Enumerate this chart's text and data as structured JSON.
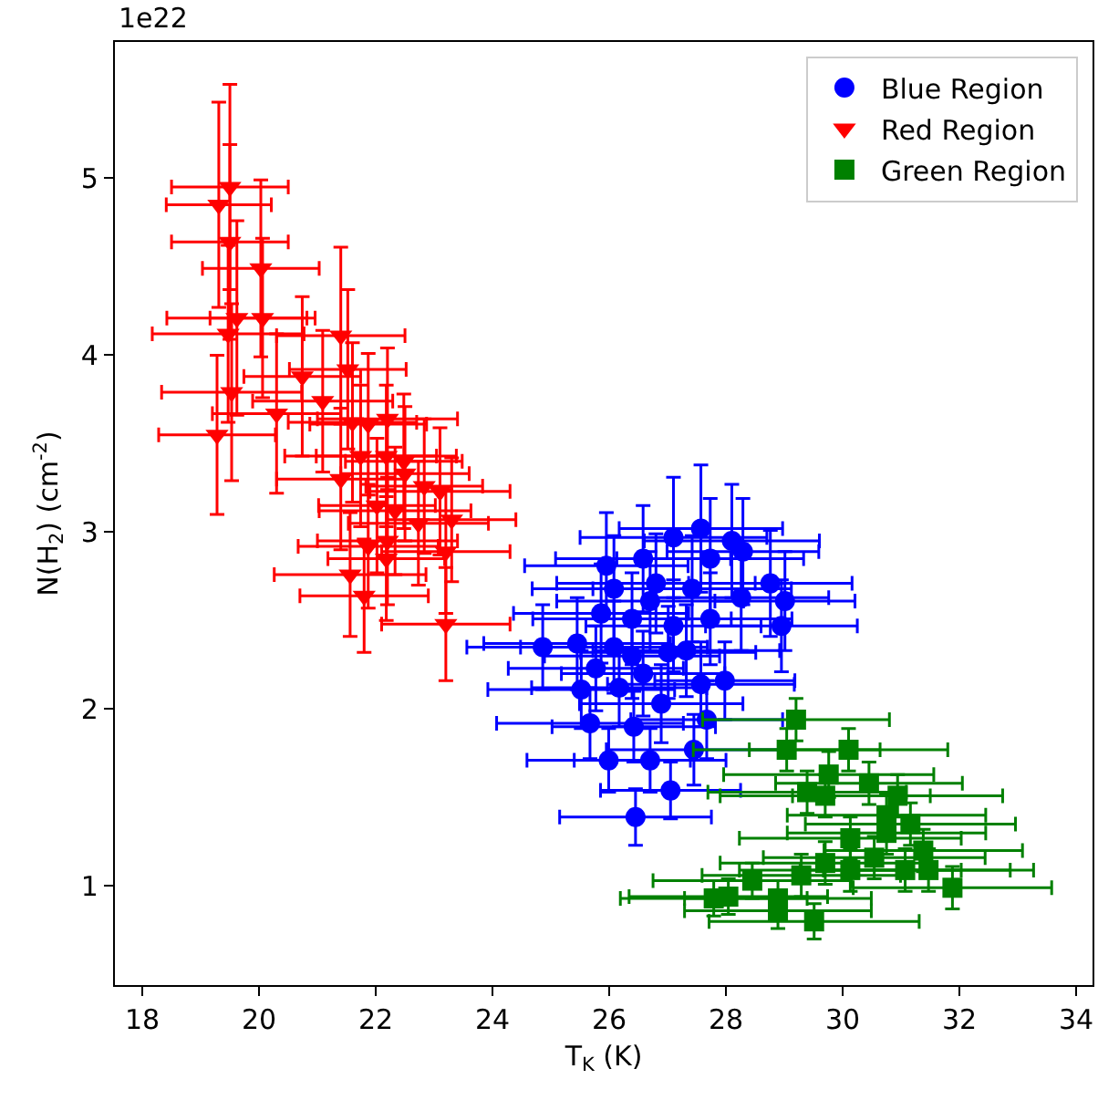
{
  "chart_data": {
    "type": "scatter",
    "xlabel": "T$_{K}$ (K)",
    "ylabel": "N(H$_{2}$) (cm$^{-2}$)",
    "annotations": [
      "1e22"
    ],
    "xlim": [
      17.53,
      34.28
    ],
    "xticks": [
      18,
      20,
      22,
      24,
      26,
      28,
      30,
      32,
      34
    ],
    "ylim": [
      0.44,
      5.77
    ],
    "yticks": [
      1,
      2,
      3,
      4,
      5
    ],
    "grid": false,
    "legend": "top right",
    "series": [
      {
        "name": "Blue Region",
        "color": "#0000ff",
        "marker": "circle",
        "x": [
          26.45,
          27.05,
          25.99,
          26.7,
          27.45,
          25.67,
          26.42,
          27.67,
          25.52,
          26.17,
          26.89,
          27.98,
          27.57,
          24.86,
          26.08,
          25.86,
          26.39,
          27.1,
          26.7,
          26.08,
          26.58,
          27.1,
          27.57,
          28.1,
          28.29,
          28.76,
          29.01,
          28.95,
          28.26,
          27.73,
          27.42,
          27.73,
          25.45,
          26.39,
          27.01,
          27.32,
          26.58,
          25.77,
          25.95,
          26.8
        ],
        "values": [
          1.39,
          1.54,
          1.71,
          1.71,
          1.77,
          1.92,
          1.9,
          1.94,
          2.11,
          2.12,
          2.03,
          2.16,
          2.14,
          2.35,
          2.35,
          2.54,
          2.51,
          2.47,
          2.61,
          2.68,
          2.85,
          2.97,
          3.02,
          2.95,
          2.89,
          2.71,
          2.61,
          2.47,
          2.63,
          2.85,
          2.68,
          2.51,
          2.37,
          2.3,
          2.32,
          2.33,
          2.2,
          2.23,
          2.81,
          2.71
        ],
        "xerrors": [
          1.3,
          1.2,
          1.4,
          1.3,
          1.5,
          1.6,
          1.4,
          1.3,
          1.6,
          1.5,
          1.4,
          1.2,
          1.6,
          1.3,
          1.6,
          1.5,
          1.7,
          1.5,
          1.6,
          1.4,
          1.5,
          1.6,
          1.4,
          1.5,
          1.3,
          1.4,
          1.2,
          1.3,
          1.5,
          1.6,
          1.7,
          1.4,
          1.6,
          1.5,
          1.5,
          1.6,
          1.4,
          1.5,
          1.4,
          1.7
        ],
        "errors": [
          0.16,
          0.16,
          0.18,
          0.18,
          0.2,
          0.2,
          0.2,
          0.22,
          0.22,
          0.22,
          0.22,
          0.22,
          0.24,
          0.24,
          0.26,
          0.28,
          0.26,
          0.26,
          0.28,
          0.3,
          0.3,
          0.34,
          0.36,
          0.32,
          0.3,
          0.3,
          0.28,
          0.26,
          0.3,
          0.34,
          0.3,
          0.26,
          0.26,
          0.24,
          0.26,
          0.26,
          0.24,
          0.24,
          0.3,
          0.28
        ]
      },
      {
        "name": "Red Region",
        "color": "#ff0000",
        "marker": "triangle",
        "x": [
          19.31,
          19.5,
          19.5,
          20.03,
          19.62,
          19.47,
          20.06,
          19.53,
          19.28,
          20.3,
          20.74,
          21.4,
          21.09,
          21.52,
          21.6,
          21.87,
          22.2,
          21.74,
          21.4,
          22.18,
          22.5,
          22.83,
          23.1,
          22.33,
          22.02,
          23.3,
          21.87,
          22.18,
          23.2,
          21.56,
          21.8,
          22.2,
          23.2,
          22.48,
          22.73
        ],
        "values": [
          4.85,
          4.95,
          4.64,
          4.49,
          4.21,
          4.12,
          4.21,
          3.79,
          3.55,
          3.67,
          3.88,
          4.11,
          3.74,
          3.92,
          3.62,
          3.61,
          3.64,
          3.43,
          3.3,
          3.43,
          3.33,
          3.26,
          3.23,
          3.12,
          3.15,
          3.07,
          2.92,
          2.85,
          2.89,
          2.76,
          2.64,
          2.95,
          2.48,
          3.4,
          3.05
        ],
        "xerrors": [
          0.9,
          1.0,
          1.0,
          1.0,
          1.2,
          1.3,
          0.9,
          1.2,
          1.0,
          1.1,
          1.0,
          1.1,
          1.2,
          1.0,
          1.1,
          1.0,
          1.2,
          1.3,
          1.1,
          1.2,
          1.1,
          1.0,
          1.2,
          1.3,
          1.0,
          1.1,
          1.2,
          1.0,
          1.1,
          1.3,
          1.1,
          1.2,
          1.1,
          1.0,
          1.2
        ],
        "errors": [
          0.58,
          0.58,
          0.55,
          0.5,
          0.55,
          0.5,
          0.45,
          0.5,
          0.45,
          0.45,
          0.45,
          0.5,
          0.4,
          0.45,
          0.45,
          0.4,
          0.4,
          0.4,
          0.4,
          0.4,
          0.38,
          0.38,
          0.36,
          0.36,
          0.38,
          0.35,
          0.35,
          0.35,
          0.35,
          0.35,
          0.32,
          0.36,
          0.32,
          0.38,
          0.35
        ]
      },
      {
        "name": "Green Region",
        "color": "#008000",
        "marker": "square",
        "x": [
          29.2,
          29.04,
          30.1,
          29.76,
          30.45,
          29.39,
          30.94,
          30.13,
          30.75,
          31.16,
          31.38,
          31.07,
          30.54,
          29.7,
          29.29,
          31.88,
          31.47,
          28.89,
          29.51,
          28.04,
          27.79,
          28.45,
          28.89,
          30.13,
          29.7,
          30.75
        ],
        "values": [
          1.94,
          1.77,
          1.77,
          1.63,
          1.58,
          1.53,
          1.51,
          1.27,
          1.3,
          1.35,
          1.2,
          1.09,
          1.16,
          1.13,
          1.06,
          0.99,
          1.09,
          0.93,
          0.8,
          0.94,
          0.93,
          1.03,
          0.86,
          1.09,
          1.51,
          1.4
        ],
        "xerrors": [
          1.6,
          1.6,
          1.7,
          1.8,
          1.6,
          1.7,
          1.8,
          1.9,
          1.7,
          1.8,
          1.7,
          1.8,
          1.9,
          1.8,
          1.7,
          1.7,
          1.8,
          1.6,
          1.8,
          1.7,
          1.6,
          1.7,
          1.6,
          1.9,
          1.8,
          1.7
        ],
        "errors": [
          0.12,
          0.12,
          0.12,
          0.13,
          0.12,
          0.12,
          0.12,
          0.12,
          0.12,
          0.12,
          0.12,
          0.12,
          0.12,
          0.12,
          0.12,
          0.12,
          0.12,
          0.1,
          0.1,
          0.1,
          0.1,
          0.1,
          0.1,
          0.12,
          0.12,
          0.12
        ]
      }
    ]
  }
}
